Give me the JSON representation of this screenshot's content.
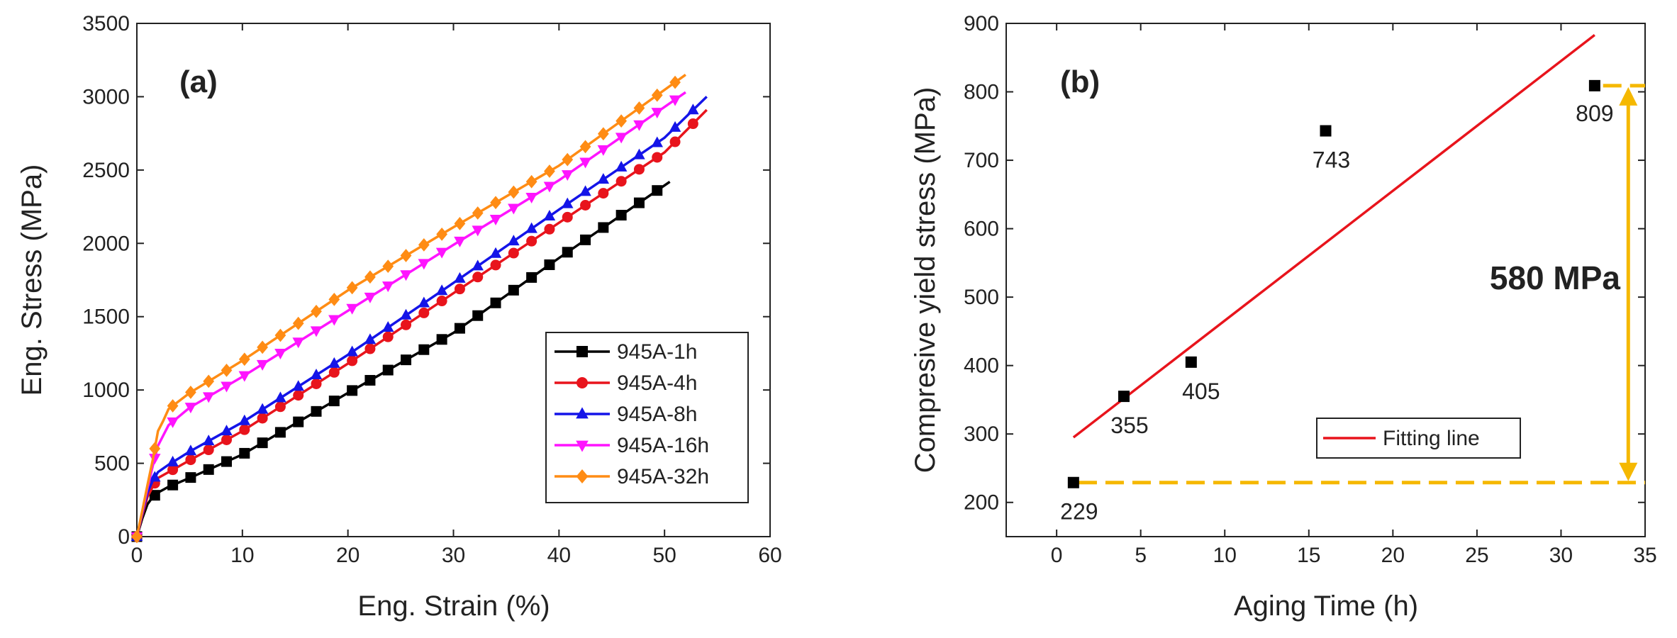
{
  "chart_data": [
    {
      "type": "line",
      "panel_label": "(a)",
      "xlabel": "Eng. Strain (%)",
      "ylabel": "Eng. Stress (MPa)",
      "xlim": [
        0,
        60
      ],
      "ylim": [
        0,
        3500
      ],
      "xticks": [
        "0",
        "10",
        "20",
        "30",
        "40",
        "50",
        "60"
      ],
      "yticks": [
        "0",
        "500",
        "1000",
        "1500",
        "2000",
        "2500",
        "3000",
        "3500"
      ],
      "legend_position": "lower-right",
      "series": [
        {
          "name": "945A-1h",
          "color": "#000000",
          "marker": "square",
          "x": [
            0,
            0.5,
            1.0,
            1.5,
            2.0,
            3.0,
            5.0,
            10.0,
            20.0,
            30.0,
            40.0,
            50.5
          ],
          "y": [
            0,
            120,
            220,
            270,
            300,
            340,
            400,
            560,
            980,
            1390,
            1900,
            2420
          ]
        },
        {
          "name": "945A-4h",
          "color": "#e8141c",
          "marker": "circle",
          "x": [
            0,
            0.5,
            1.0,
            1.5,
            2.0,
            3.0,
            5.0,
            10.0,
            20.0,
            30.0,
            40.0,
            50.0,
            54.0
          ],
          "y": [
            0,
            140,
            270,
            340,
            400,
            440,
            520,
            720,
            1180,
            1660,
            2140,
            2620,
            2910
          ]
        },
        {
          "name": "945A-8h",
          "color": "#1414e8",
          "marker": "triangle-up",
          "x": [
            0,
            0.5,
            1.0,
            1.5,
            2.0,
            3.0,
            5.0,
            10.0,
            20.0,
            30.0,
            40.0,
            50.0,
            54.0
          ],
          "y": [
            0,
            150,
            300,
            380,
            440,
            490,
            580,
            780,
            1240,
            1730,
            2230,
            2720,
            3000
          ]
        },
        {
          "name": "945A-16h",
          "color": "#ff14ff",
          "marker": "triangle-down",
          "x": [
            0,
            0.5,
            1.0,
            1.5,
            2.0,
            3.0,
            5.0,
            10.0,
            20.0,
            30.0,
            40.0,
            52.0
          ],
          "y": [
            0,
            160,
            330,
            480,
            620,
            760,
            880,
            1090,
            1540,
            1990,
            2430,
            3030
          ]
        },
        {
          "name": "945A-32h",
          "color": "#ff8c14",
          "marker": "diamond",
          "x": [
            0,
            0.5,
            1.0,
            1.5,
            2.0,
            2.5,
            3.0,
            5.0,
            10.0,
            20.0,
            30.0,
            40.0,
            52.0
          ],
          "y": [
            0,
            170,
            350,
            520,
            720,
            790,
            870,
            980,
            1200,
            1680,
            2110,
            2530,
            3150
          ]
        }
      ]
    },
    {
      "type": "scatter",
      "panel_label": "(b)",
      "xlabel": "Aging Time (h)",
      "ylabel": "Compresive yield stress (MPa)",
      "xlim": [
        -3,
        35
      ],
      "ylim": [
        150,
        900
      ],
      "xticks": [
        "0",
        "5",
        "10",
        "15",
        "20",
        "25",
        "30",
        "35"
      ],
      "yticks": [
        "200",
        "300",
        "400",
        "500",
        "600",
        "700",
        "800",
        "900"
      ],
      "legend_position": "lower-right",
      "points": [
        {
          "x": 1,
          "y": 229,
          "label": "229"
        },
        {
          "x": 4,
          "y": 355,
          "label": "355"
        },
        {
          "x": 8,
          "y": 405,
          "label": "405"
        },
        {
          "x": 16,
          "y": 743,
          "label": "743"
        },
        {
          "x": 32,
          "y": 809,
          "label": "809"
        }
      ],
      "fit_line": {
        "name": "Fitting line",
        "color": "#e8141c",
        "x": [
          1,
          32
        ],
        "y": [
          295,
          883
        ]
      },
      "annotation": {
        "text": "580 MPa",
        "color": "#f5b800",
        "from": 229,
        "to": 809,
        "at_x": 34
      }
    }
  ]
}
